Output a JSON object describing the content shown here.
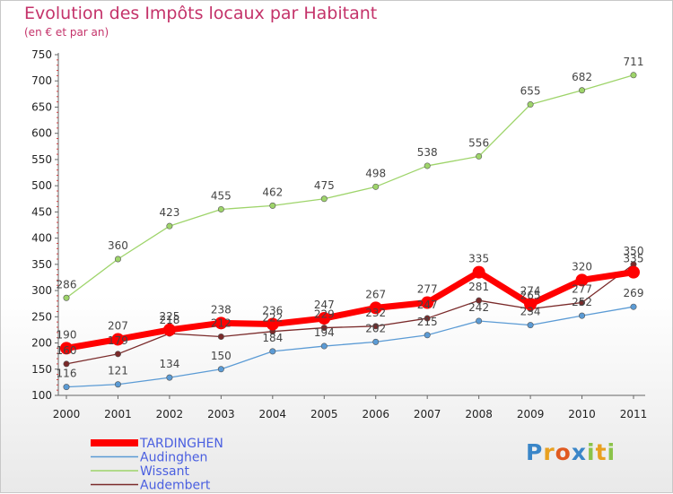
{
  "chart_data": {
    "type": "line",
    "title": "Evolution des Impôts locaux par Habitant",
    "subtitle": "(en € et par an)",
    "categories": [
      "2000",
      "2001",
      "2002",
      "2003",
      "2004",
      "2005",
      "2006",
      "2007",
      "2008",
      "2009",
      "2010",
      "2011"
    ],
    "ylim": [
      100,
      750
    ],
    "yticks": [
      100,
      150,
      200,
      250,
      300,
      350,
      400,
      450,
      500,
      550,
      600,
      650,
      700,
      750
    ],
    "series": [
      {
        "name": "TARDINGHEN",
        "color": "#ff0000",
        "values": [
          190,
          207,
          225,
          238,
          236,
          247,
          267,
          277,
          335,
          274,
          320,
          335
        ]
      },
      {
        "name": "Audinghen",
        "color": "#5b9bd5",
        "values": [
          116,
          121,
          134,
          150,
          184,
          194,
          202,
          215,
          242,
          234,
          252,
          269
        ]
      },
      {
        "name": "Wissant",
        "color": "#9ed46a",
        "values": [
          286,
          360,
          423,
          455,
          462,
          475,
          498,
          538,
          556,
          655,
          682,
          711
        ]
      },
      {
        "name": "Audembert",
        "color": "#7a2a2a",
        "values": [
          160,
          179,
          218,
          212,
          222,
          229,
          232,
          247,
          281,
          265,
          277,
          350
        ]
      }
    ],
    "legend_placement": "bottom-left",
    "grid": false
  },
  "logo": {
    "letters": [
      "P",
      "r",
      "o",
      "x",
      "i",
      "t",
      "i"
    ],
    "colors": [
      "#3a86c8",
      "#e8a020",
      "#e05a20",
      "#3a86c8",
      "#8bc34a",
      "#e8a020",
      "#8bc34a"
    ]
  }
}
